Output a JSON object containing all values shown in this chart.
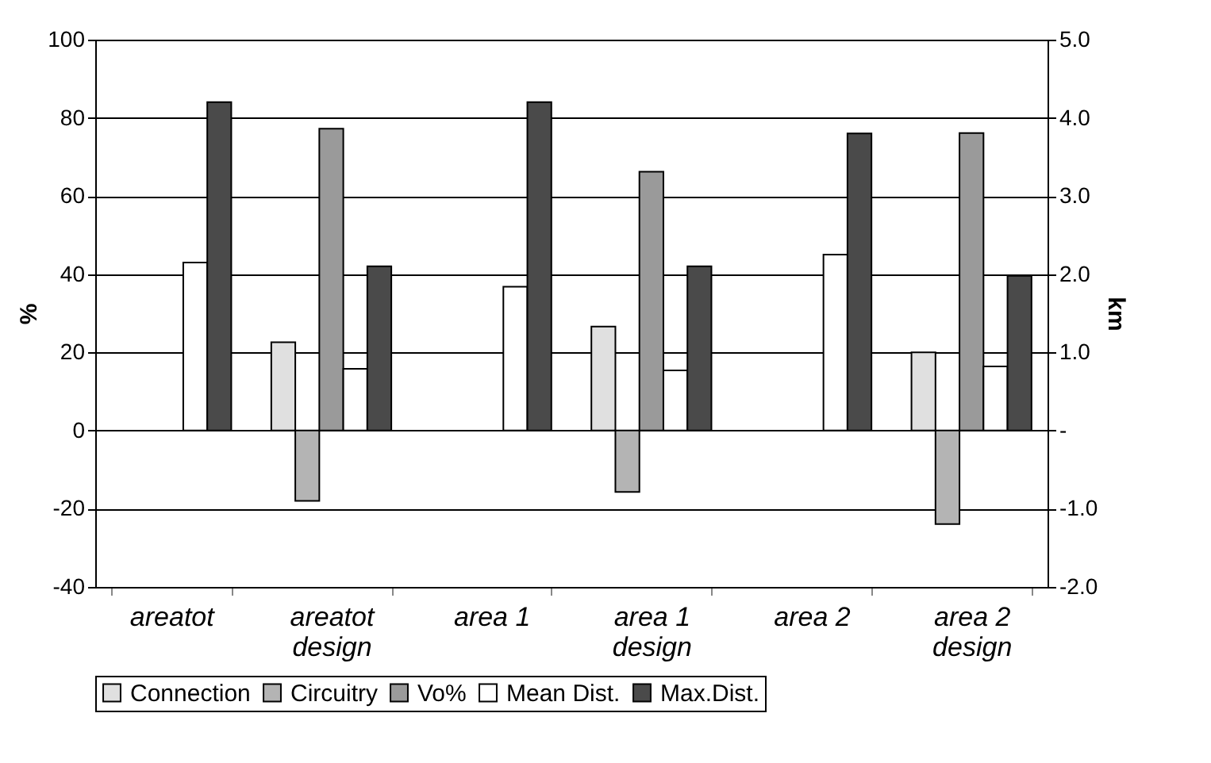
{
  "chart_data": {
    "type": "bar",
    "categories": [
      "areatot",
      "areatot design",
      "area 1",
      "area 1 design",
      "area 2",
      "area 2 design"
    ],
    "ylabel": "%",
    "y2label": "km",
    "ylim": [
      -40,
      100
    ],
    "yticks": [
      -40,
      -20,
      0,
      20,
      40,
      60,
      80,
      100
    ],
    "y2lim": [
      -2,
      5
    ],
    "y2ticks": [
      {
        "value": -2,
        "label": "-2.0"
      },
      {
        "value": -1,
        "label": "-1.0"
      },
      {
        "value": 0,
        "label": "-"
      },
      {
        "value": 1,
        "label": "1.0"
      },
      {
        "value": 2,
        "label": "2.0"
      },
      {
        "value": 3,
        "label": "3.0"
      },
      {
        "value": 4,
        "label": "4.0"
      },
      {
        "value": 5,
        "label": "5.0"
      }
    ],
    "grid": "y",
    "legend": "bottom",
    "series": [
      {
        "name": "Connection",
        "color": "#e0e0e0",
        "values": [
          null,
          22.6,
          null,
          26.6,
          null,
          20
        ]
      },
      {
        "name": "Circuitry",
        "color": "#b4b4b4",
        "values": [
          null,
          -18,
          null,
          -15.7,
          null,
          -23.9
        ]
      },
      {
        "name": "Vo%",
        "color": "#9a9a9a",
        "values": [
          null,
          77.2,
          null,
          66.2,
          null,
          76.1
        ]
      },
      {
        "name": "Mean Dist.",
        "color": "#ffffff",
        "axis": "y2",
        "values": [
          2.15,
          0.79,
          1.84,
          0.77,
          2.25,
          0.82
        ]
      },
      {
        "name": "Max.Dist.",
        "color": "#4a4a4a",
        "axis": "y2",
        "values": [
          4.2,
          2.1,
          4.2,
          2.1,
          3.8,
          1.98
        ]
      }
    ]
  }
}
